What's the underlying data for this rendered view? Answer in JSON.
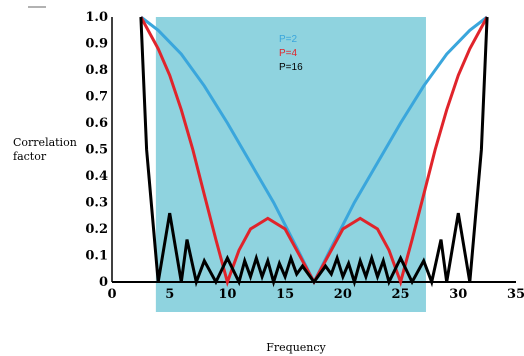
{
  "chart_data": {
    "type": "line",
    "title": "",
    "xlabel": "Frequency",
    "ylabel_line1": "Correlation",
    "ylabel_line2": "factor",
    "xlim": [
      0,
      35
    ],
    "ylim": [
      0,
      1.0
    ],
    "x_ticks": [
      {
        "value": 0,
        "label": "0"
      },
      {
        "value": 5,
        "label": "5"
      },
      {
        "value": 10,
        "label": "10"
      },
      {
        "value": 15,
        "label": "15"
      },
      {
        "value": 20,
        "label": "20"
      },
      {
        "value": 25,
        "label": "25"
      },
      {
        "value": 30,
        "label": "30"
      },
      {
        "value": 35,
        "label": "35"
      }
    ],
    "y_ticks": [
      {
        "value": 0,
        "label": "0"
      },
      {
        "value": 0.1,
        "label": "0.1"
      },
      {
        "value": 0.2,
        "label": "0.2"
      },
      {
        "value": 0.3,
        "label": "0.3"
      },
      {
        "value": 0.4,
        "label": "0.4"
      },
      {
        "value": 0.5,
        "label": "0.5"
      },
      {
        "value": 0.6,
        "label": "0.6"
      },
      {
        "value": 0.7,
        "label": "0.7"
      },
      {
        "value": 0.8,
        "label": "0.8"
      },
      {
        "value": 0.9,
        "label": "0.9"
      },
      {
        "value": 1.0,
        "label": "1.0"
      }
    ],
    "highlight_band": {
      "x_start": 3.8,
      "x_end": 27.2,
      "color": "#8fd3df"
    },
    "legend_placement": "top-center",
    "series": [
      {
        "name": "P=2",
        "color": "#3aa6dc",
        "x": [
          2.5,
          4,
          6,
          8,
          10,
          12,
          14,
          16,
          17.5,
          19,
          21,
          23,
          25,
          27,
          29,
          31,
          32.5
        ],
        "y": [
          1.0,
          0.95,
          0.86,
          0.74,
          0.6,
          0.45,
          0.3,
          0.13,
          0.0,
          0.13,
          0.3,
          0.45,
          0.6,
          0.74,
          0.86,
          0.95,
          1.0
        ]
      },
      {
        "name": "P=4",
        "color": "#e0242b",
        "x": [
          2.5,
          4,
          5,
          6,
          7,
          8,
          9,
          10,
          11,
          12,
          13.5,
          15,
          16.5,
          17.5,
          18.5,
          20,
          21.5,
          23,
          24,
          25,
          26,
          27,
          28,
          29,
          30,
          31,
          32.5
        ],
        "y": [
          1.0,
          0.88,
          0.78,
          0.65,
          0.5,
          0.33,
          0.16,
          0.0,
          0.12,
          0.2,
          0.24,
          0.2,
          0.08,
          0.0,
          0.08,
          0.2,
          0.24,
          0.2,
          0.12,
          0.0,
          0.16,
          0.33,
          0.5,
          0.65,
          0.78,
          0.88,
          1.0
        ]
      },
      {
        "name": "P=16",
        "color": "#000000",
        "x": [
          2.5,
          3.0,
          4.0,
          5.0,
          6.0,
          6.5,
          7.3,
          8.0,
          9.0,
          10.0,
          11.0,
          11.5,
          12.0,
          12.5,
          13.0,
          13.5,
          14.0,
          14.5,
          15.0,
          15.5,
          16.0,
          16.5,
          17.5,
          18.5,
          19.0,
          19.5,
          20.0,
          20.5,
          21.0,
          21.5,
          22.0,
          22.5,
          23.0,
          23.5,
          24.0,
          25.0,
          26.0,
          27.0,
          27.7,
          28.5,
          29.0,
          30.0,
          31.0,
          32.0,
          32.5
        ],
        "y": [
          1.0,
          0.5,
          0.0,
          0.26,
          0.0,
          0.16,
          0.0,
          0.08,
          0.0,
          0.09,
          0.0,
          0.08,
          0.02,
          0.09,
          0.02,
          0.08,
          0.0,
          0.07,
          0.02,
          0.09,
          0.03,
          0.06,
          0.0,
          0.06,
          0.03,
          0.09,
          0.02,
          0.07,
          0.0,
          0.08,
          0.02,
          0.09,
          0.02,
          0.08,
          0.0,
          0.09,
          0.0,
          0.08,
          0.0,
          0.16,
          0.0,
          0.26,
          0.0,
          0.5,
          1.0
        ]
      }
    ]
  }
}
